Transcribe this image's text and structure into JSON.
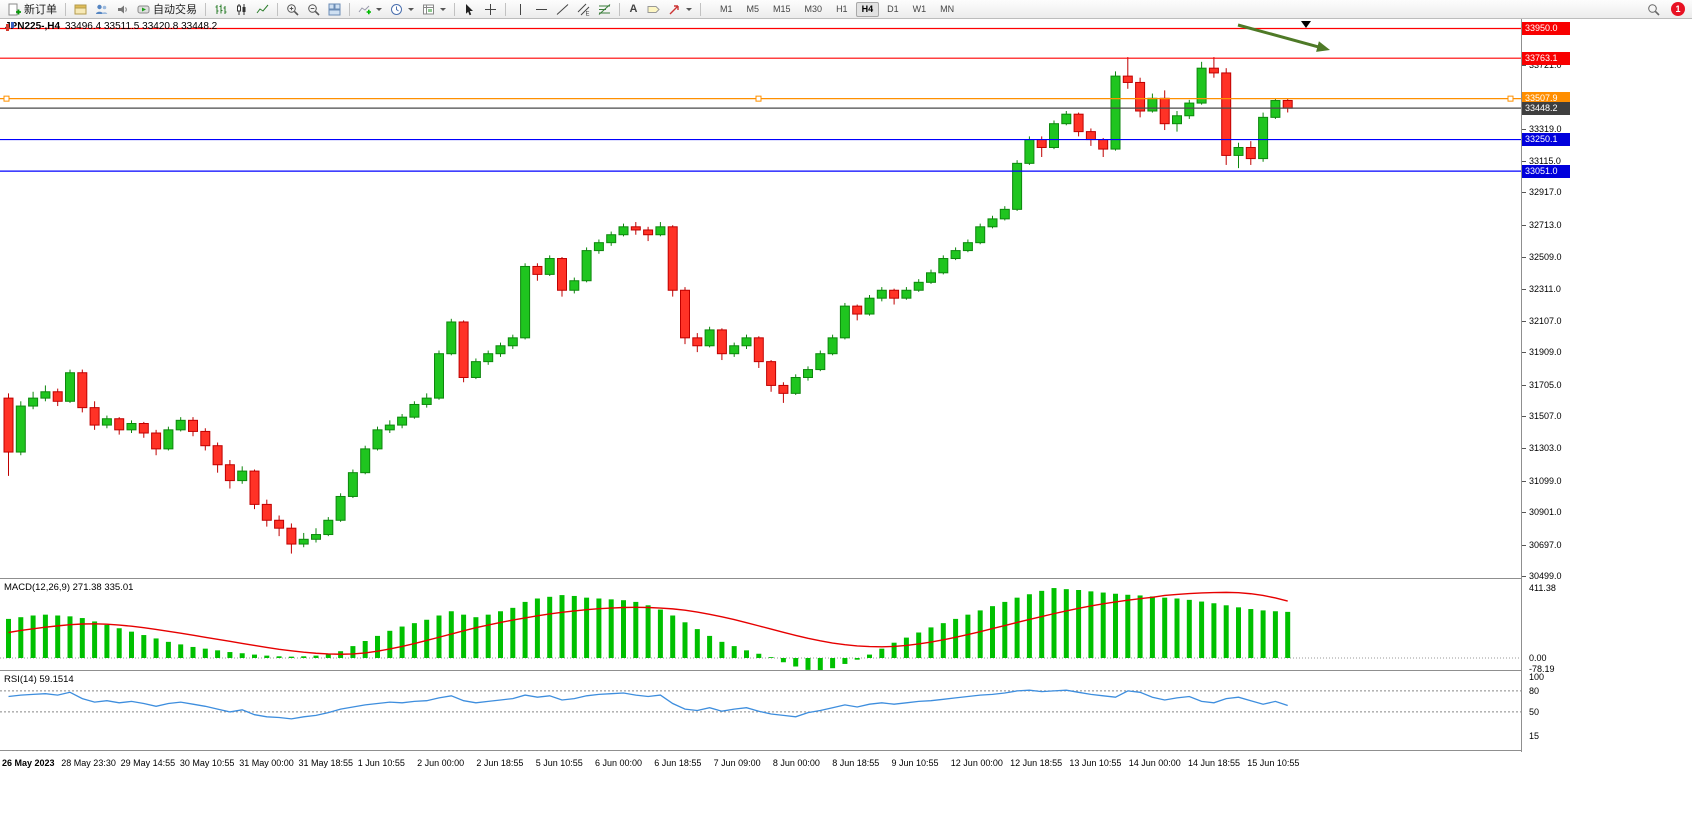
{
  "toolbar": {
    "new_order_label": "新订单",
    "autotrading_label": "自动交易",
    "text_tool_label": "A",
    "timeframes": [
      "M1",
      "M5",
      "M15",
      "M30",
      "H1",
      "H4",
      "D1",
      "W1",
      "MN"
    ],
    "active_timeframe": "H4",
    "notification_count": "1"
  },
  "chart": {
    "symbol_period": "JPN225-,H4",
    "ohlc_text": "33496.4 33511.5 33420.8 33448.2",
    "colors": {
      "up": "#1fc51f",
      "up_border": "#0d870d",
      "down": "#ff3226",
      "down_border": "#bf0000"
    },
    "arrow_color": "#4e7a27",
    "hlines": [
      {
        "price": 33950.0,
        "label": "33950.0",
        "color": "#ff0000",
        "badge": "#f80000",
        "handles": false
      },
      {
        "price": 33763.1,
        "label": "33763.1",
        "color": "#ff0000",
        "badge": "#f80000",
        "handles": false
      },
      {
        "price": 33507.9,
        "label": "33507.9",
        "color": "#ff9000",
        "badge": "#ff8e00",
        "handles": true
      },
      {
        "price": 33250.1,
        "label": "33250.1",
        "color": "#0000ff",
        "badge": "#0000dc",
        "handles": false
      },
      {
        "price": 33051.0,
        "label": "33051.0",
        "color": "#0000ff",
        "badge": "#0000dc",
        "handles": false
      }
    ],
    "current_price": {
      "price": 33448.2,
      "label": "33448.2",
      "color": "#4a4a4a",
      "badge": "#3f3f3f"
    },
    "y_axis_labels": [
      "33721.0",
      "33319.0",
      "33115.0",
      "32917.0",
      "32713.0",
      "32509.0",
      "32311.0",
      "32107.0",
      "31909.0",
      "31705.0",
      "31507.0",
      "31303.0",
      "31099.0",
      "30901.0",
      "30697.0",
      "30499.0"
    ]
  },
  "macd_panel": {
    "label": "MACD(12,26,9) 271.38 335.01",
    "axis_top": "411.38",
    "axis_zero": "0.00",
    "axis_bottom": "-78.19"
  },
  "rsi_panel": {
    "label": "RSI(14) 59.1514",
    "axis_100": "100",
    "axis_80": "80",
    "axis_50": "50",
    "axis_15": "15"
  },
  "chart_data": {
    "type": "candlestick",
    "symbol": "JPN225-",
    "period": "H4",
    "current_bar": {
      "open": 33496.4,
      "high": 33511.5,
      "low": 33420.8,
      "close": 33448.2
    },
    "ylim": [
      30486,
      34010
    ],
    "hlines": [
      33950.0,
      33763.1,
      33507.9,
      33250.1,
      33051.0
    ],
    "current_price": 33448.2,
    "x_labels": [
      "26 May 2023",
      "28 May 23:30",
      "29 May 14:55",
      "30 May 10:55",
      "31 May 00:00",
      "31 May 18:55",
      "1 Jun 10:55",
      "2 Jun 00:00",
      "2 Jun 18:55",
      "5 Jun 10:55",
      "6 Jun 00:00",
      "6 Jun 18:55",
      "7 Jun 09:00",
      "8 Jun 00:00",
      "8 Jun 18:55",
      "9 Jun 10:55",
      "12 Jun 00:00",
      "12 Jun 18:55",
      "13 Jun 10:55",
      "14 Jun 00:00",
      "14 Jun 18:55",
      "15 Jun 10:55"
    ],
    "candles": [
      [
        31620,
        31650,
        31130,
        31280
      ],
      [
        31280,
        31600,
        31260,
        31570
      ],
      [
        31570,
        31660,
        31550,
        31620
      ],
      [
        31620,
        31700,
        31600,
        31660
      ],
      [
        31660,
        31680,
        31570,
        31600
      ],
      [
        31600,
        31800,
        31590,
        31780
      ],
      [
        31780,
        31800,
        31530,
        31560
      ],
      [
        31560,
        31600,
        31420,
        31450
      ],
      [
        31450,
        31510,
        31430,
        31490
      ],
      [
        31490,
        31500,
        31390,
        31420
      ],
      [
        31420,
        31480,
        31400,
        31460
      ],
      [
        31460,
        31470,
        31370,
        31400
      ],
      [
        31400,
        31420,
        31260,
        31300
      ],
      [
        31300,
        31440,
        31290,
        31420
      ],
      [
        31420,
        31500,
        31410,
        31480
      ],
      [
        31480,
        31500,
        31380,
        31410
      ],
      [
        31410,
        31430,
        31290,
        31320
      ],
      [
        31320,
        31340,
        31150,
        31200
      ],
      [
        31200,
        31230,
        31050,
        31100
      ],
      [
        31100,
        31190,
        31080,
        31160
      ],
      [
        31160,
        31170,
        30920,
        30950
      ],
      [
        30950,
        30980,
        30810,
        30850
      ],
      [
        30850,
        30880,
        30750,
        30800
      ],
      [
        30800,
        30830,
        30640,
        30700
      ],
      [
        30700,
        30770,
        30680,
        30730
      ],
      [
        30730,
        30800,
        30710,
        30760
      ],
      [
        30760,
        30870,
        30750,
        30850
      ],
      [
        30850,
        31020,
        30840,
        31000
      ],
      [
        31000,
        31170,
        30990,
        31150
      ],
      [
        31150,
        31320,
        31140,
        31300
      ],
      [
        31300,
        31440,
        31290,
        31420
      ],
      [
        31420,
        31480,
        31400,
        31450
      ],
      [
        31450,
        31520,
        31430,
        31500
      ],
      [
        31500,
        31600,
        31490,
        31580
      ],
      [
        31580,
        31650,
        31560,
        31620
      ],
      [
        31620,
        31920,
        31610,
        31900
      ],
      [
        31900,
        32120,
        31890,
        32100
      ],
      [
        32100,
        32110,
        31720,
        31750
      ],
      [
        31750,
        31870,
        31740,
        31850
      ],
      [
        31850,
        31920,
        31830,
        31900
      ],
      [
        31900,
        31970,
        31880,
        31950
      ],
      [
        31950,
        32020,
        31930,
        32000
      ],
      [
        32000,
        32470,
        31990,
        32450
      ],
      [
        32450,
        32470,
        32360,
        32400
      ],
      [
        32400,
        32520,
        32390,
        32500
      ],
      [
        32500,
        32510,
        32260,
        32300
      ],
      [
        32300,
        32380,
        32280,
        32360
      ],
      [
        32360,
        32570,
        32350,
        32550
      ],
      [
        32550,
        32620,
        32530,
        32600
      ],
      [
        32600,
        32670,
        32580,
        32650
      ],
      [
        32650,
        32720,
        32640,
        32700
      ],
      [
        32700,
        32730,
        32650,
        32680
      ],
      [
        32680,
        32700,
        32610,
        32650
      ],
      [
        32650,
        32730,
        32640,
        32700
      ],
      [
        32700,
        32710,
        32260,
        32300
      ],
      [
        32300,
        32320,
        31960,
        32000
      ],
      [
        32000,
        32030,
        31910,
        31950
      ],
      [
        31950,
        32070,
        31940,
        32050
      ],
      [
        32050,
        32060,
        31860,
        31900
      ],
      [
        31900,
        31970,
        31880,
        31950
      ],
      [
        31950,
        32020,
        31930,
        32000
      ],
      [
        32000,
        32010,
        31810,
        31850
      ],
      [
        31850,
        31860,
        31660,
        31700
      ],
      [
        31700,
        31720,
        31590,
        31650
      ],
      [
        31650,
        31770,
        31640,
        31750
      ],
      [
        31750,
        31820,
        31730,
        31800
      ],
      [
        31800,
        31920,
        31790,
        31900
      ],
      [
        31900,
        32020,
        31890,
        32000
      ],
      [
        32000,
        32220,
        31990,
        32200
      ],
      [
        32200,
        32210,
        32110,
        32150
      ],
      [
        32150,
        32270,
        32140,
        32250
      ],
      [
        32250,
        32320,
        32230,
        32300
      ],
      [
        32300,
        32310,
        32210,
        32250
      ],
      [
        32250,
        32320,
        32240,
        32300
      ],
      [
        32300,
        32370,
        32290,
        32350
      ],
      [
        32350,
        32430,
        32340,
        32410
      ],
      [
        32410,
        32520,
        32400,
        32500
      ],
      [
        32500,
        32570,
        32490,
        32550
      ],
      [
        32550,
        32620,
        32540,
        32600
      ],
      [
        32600,
        32720,
        32590,
        32700
      ],
      [
        32700,
        32770,
        32690,
        32750
      ],
      [
        32750,
        32830,
        32740,
        32810
      ],
      [
        32810,
        33120,
        32800,
        33100
      ],
      [
        33100,
        33270,
        33090,
        33250
      ],
      [
        33250,
        33270,
        33140,
        33200
      ],
      [
        33200,
        33370,
        33190,
        33350
      ],
      [
        33350,
        33430,
        33340,
        33410
      ],
      [
        33410,
        33420,
        33270,
        33300
      ],
      [
        33300,
        33320,
        33210,
        33250
      ],
      [
        33250,
        33260,
        33140,
        33190
      ],
      [
        33190,
        33680,
        33180,
        33650
      ],
      [
        33650,
        33770,
        33570,
        33610
      ],
      [
        33610,
        33640,
        33390,
        33430
      ],
      [
        33430,
        33540,
        33420,
        33510
      ],
      [
        33510,
        33560,
        33310,
        33350
      ],
      [
        33350,
        33430,
        33300,
        33400
      ],
      [
        33400,
        33500,
        33380,
        33480
      ],
      [
        33480,
        33740,
        33470,
        33700
      ],
      [
        33700,
        33770,
        33640,
        33670
      ],
      [
        33670,
        33700,
        33090,
        33150
      ],
      [
        33150,
        33230,
        33070,
        33200
      ],
      [
        33200,
        33240,
        33090,
        33130
      ],
      [
        33130,
        33420,
        33110,
        33390
      ],
      [
        33390,
        33510,
        33380,
        33496
      ],
      [
        33496.4,
        33511.5,
        33420.8,
        33448.2
      ]
    ],
    "indicators": [
      {
        "name": "MACD",
        "params": "12,26,9",
        "current": [
          271.38,
          335.01
        ],
        "ylim": [
          -78.19,
          411.38
        ],
        "histogram": [
          230,
          240,
          250,
          255,
          250,
          245,
          235,
          215,
          195,
          175,
          155,
          135,
          115,
          95,
          80,
          65,
          55,
          45,
          35,
          28,
          20,
          14,
          10,
          8,
          10,
          14,
          22,
          40,
          70,
          100,
          130,
          160,
          185,
          205,
          225,
          250,
          275,
          255,
          240,
          255,
          275,
          295,
          330,
          350,
          360,
          370,
          365,
          355,
          350,
          345,
          340,
          330,
          310,
          285,
          250,
          210,
          170,
          130,
          95,
          70,
          45,
          25,
          5,
          -25,
          -50,
          -70,
          -78.19,
          -60,
          -35,
          -10,
          20,
          55,
          90,
          120,
          150,
          180,
          205,
          230,
          255,
          280,
          305,
          330,
          355,
          375,
          395,
          411.38,
          405,
          400,
          392,
          385,
          378,
          372,
          368,
          362,
          355,
          350,
          342,
          332,
          322,
          310,
          298,
          288,
          280,
          275,
          271.38
        ],
        "signal": [
          150,
          162,
          172,
          181,
          189,
          196,
          200,
          201,
          199,
          194,
          187,
          178,
          168,
          157,
          146,
          134,
          122,
          110,
          98,
          86,
          74,
          62,
          51,
          42,
          34,
          28,
          24,
          22,
          24,
          30,
          40,
          53,
          68,
          85,
          103,
          122,
          141,
          160,
          178,
          194,
          209,
          223,
          236,
          248,
          259,
          269,
          277,
          284,
          290,
          294,
          297,
          298,
          297,
          294,
          289,
          281,
          270,
          257,
          242,
          226,
          208,
          189,
          170,
          151,
          133,
          116,
          101,
          88,
          78,
          71,
          67,
          66,
          68,
          74,
          83,
          94,
          107,
          122,
          138,
          155,
          173,
          191,
          209,
          227,
          244,
          261,
          277,
          292,
          306,
          319,
          330,
          340,
          349,
          357,
          368,
          374,
          379,
          383,
          385,
          386,
          384,
          378,
          368,
          353,
          335.01
        ]
      },
      {
        "name": "RSI",
        "params": "14",
        "current": 59.1514,
        "levels": [
          80,
          50
        ],
        "range": [
          0,
          100
        ],
        "values": [
          72,
          74,
          75,
          76,
          74,
          78,
          69,
          64,
          66,
          63,
          65,
          62,
          58,
          62,
          64,
          61,
          58,
          54,
          50,
          53,
          46,
          43,
          42,
          40,
          43,
          45,
          49,
          54,
          57,
          60,
          62,
          64,
          63,
          65,
          66,
          70,
          73,
          66,
          63,
          65,
          67,
          69,
          74,
          71,
          73,
          67,
          69,
          73,
          75,
          76,
          77,
          74,
          72,
          74,
          62,
          54,
          52,
          56,
          51,
          54,
          56,
          51,
          47,
          45,
          43,
          49,
          52,
          56,
          60,
          57,
          61,
          63,
          61,
          63,
          65,
          66,
          68,
          70,
          72,
          74,
          75,
          77,
          80,
          81,
          79,
          80,
          81,
          78,
          75,
          73,
          71,
          80,
          78,
          71,
          67,
          70,
          72,
          65,
          63,
          69,
          71,
          66,
          61,
          65,
          59.15
        ]
      }
    ]
  }
}
